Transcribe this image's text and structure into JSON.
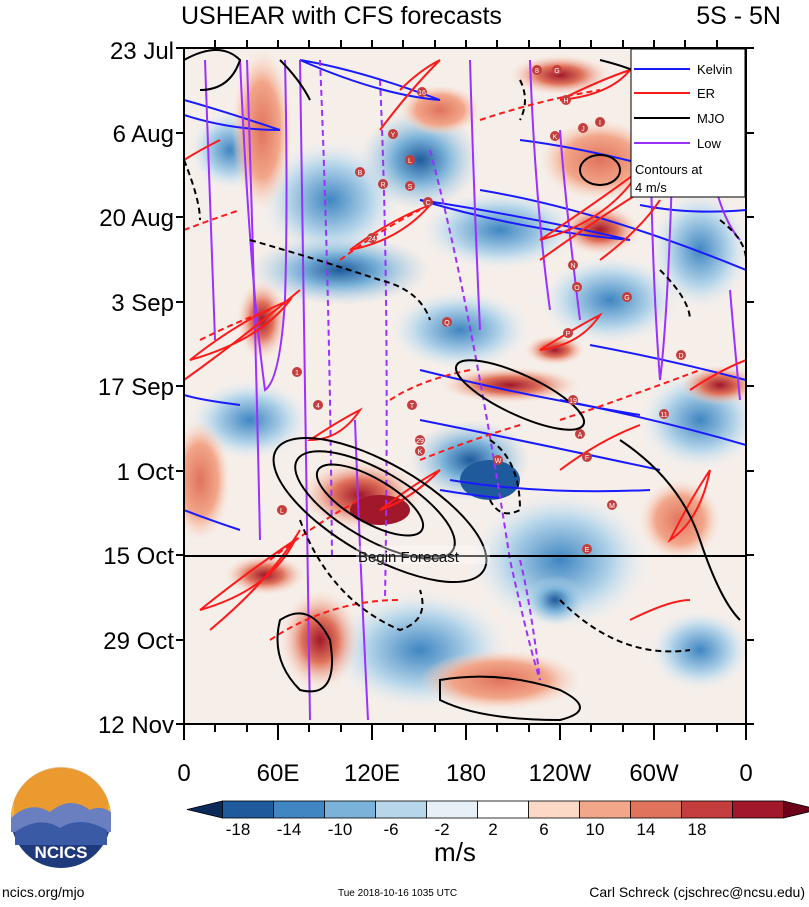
{
  "title_left": "USHEAR with CFS forecasts",
  "title_right": "5S - 5N",
  "y_ticks": [
    "23 Jul",
    "6 Aug",
    "20 Aug",
    "3 Sep",
    "17 Sep",
    "1 Oct",
    "15 Oct",
    "29 Oct",
    "12 Nov"
  ],
  "x_ticks": [
    "0",
    "60E",
    "120E",
    "180",
    "120W",
    "60W",
    "0"
  ],
  "legend": {
    "items": [
      {
        "label": "Kelvin",
        "color": "#1a1aff"
      },
      {
        "label": "ER",
        "color": "#ff1a1a"
      },
      {
        "label": "MJO",
        "color": "#000000"
      },
      {
        "label": "Low",
        "color": "#9b30ff"
      }
    ],
    "note_line1": "Contours at",
    "note_line2": "4 m/s"
  },
  "forecast_label": "Begin Forecast",
  "colorbar": {
    "units": "m/s",
    "labels": [
      "-18",
      "-14",
      "-10",
      "-6",
      "-2",
      "2",
      "6",
      "10",
      "14",
      "18"
    ],
    "colors": [
      "#0b2a5a",
      "#1f5a9c",
      "#3f86c2",
      "#7ab2d9",
      "#b7d6ea",
      "#e6f0f6",
      "#ffffff",
      "#fbd9c6",
      "#f2a68a",
      "#e0735c",
      "#c43e3e",
      "#a0182a",
      "#6b0018"
    ]
  },
  "footer": {
    "left": "ncics.org/mjo",
    "mid": "Tue 2018-10-16 1035 UTC",
    "right": "Carl Schreck (cjschrec@ncsu.edu)"
  },
  "logo": {
    "text": "NCICS"
  },
  "storm_labels": [
    "8",
    "G",
    "H",
    "K",
    "J",
    "I",
    "L",
    "P",
    "19",
    "A",
    "R",
    "B",
    "S",
    "C",
    "24",
    "Y",
    "1",
    "4",
    "T",
    "29",
    "L",
    "K",
    "W",
    "F",
    "M",
    "N",
    "O",
    "G",
    "D",
    "11",
    "Q",
    "16",
    "E"
  ],
  "chart_data": {
    "type": "heatmap",
    "title": "USHEAR with CFS forecasts",
    "subtitle": "5S - 5N",
    "xlabel": "",
    "ylabel": "",
    "x_range": [
      "0",
      "0"
    ],
    "x_ticks": [
      "0",
      "60E",
      "120E",
      "180",
      "120W",
      "60W",
      "0"
    ],
    "y_range": [
      "23 Jul",
      "12 Nov"
    ],
    "y_ticks": [
      "23 Jul",
      "6 Aug",
      "20 Aug",
      "3 Sep",
      "17 Sep",
      "1 Oct",
      "15 Oct",
      "29 Oct",
      "12 Nov"
    ],
    "colorbar_units": "m/s",
    "colorbar_levels": [
      -18,
      -14,
      -10,
      -6,
      -2,
      2,
      6,
      10,
      14,
      18
    ],
    "contour_interval_mps": 4,
    "contour_series": [
      "Kelvin",
      "ER",
      "MJO",
      "Low"
    ],
    "forecast_start": "15 Oct",
    "legend_position": "top-right"
  }
}
